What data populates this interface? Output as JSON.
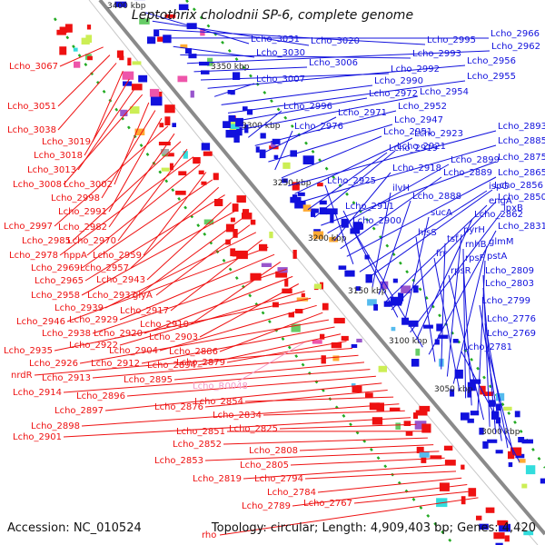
{
  "title": "Leptothrix cholodnii SP-6, complete genome",
  "accession": "Accession: NC_010524",
  "topology": "Topology: circular; Length: 4,909,403 bp; Genes: 4,420",
  "colors": {
    "minus_strand": "#ee1111",
    "plus_strand": "#1111dd",
    "rna_label": "#f39ac8",
    "ruler": "#888888",
    "dots": "#22aa22"
  },
  "coordinate_labels": [
    "3400 kbp",
    "3350 kbp",
    "3300 kbp",
    "3250 kbp",
    "3200 kbp",
    "3150 kbp",
    "3100 kbp",
    "3050 kbp",
    "3000 kbp"
  ],
  "left_labels": [
    "Lcho_3067",
    "Lcho_3051",
    "Lcho_3038",
    "Lcho_3019",
    "Lcho_3018",
    "Lcho_3013",
    "Lcho_3008",
    "Lcho_3002",
    "Lcho_2998",
    "Lcho_2991",
    "Lcho_2997",
    "Lcho_2982",
    "Lcho_2985",
    "Lcho_2970",
    "Lcho_2978",
    "hppA",
    "Lcho_2959",
    "Lcho_2969",
    "Lcho_2957",
    "Lcho_2965",
    "Lcho_2943",
    "Lcho_2958",
    "Lcho_2937",
    "glyA",
    "Lcho_2939",
    "Lcho_2917",
    "Lcho_2946",
    "Lcho_2929",
    "Lcho_2910",
    "Lcho_2938",
    "Lcho_2920",
    "Lcho_2903",
    "Lcho_2922",
    "Lcho_2935",
    "Lcho_2904",
    "Lcho_2886",
    "Lcho_2926",
    "Lcho_2912",
    "Lcho_2894",
    "Lcho_2879",
    "nrdR",
    "Lcho_2913",
    "Lcho_2895",
    "Lcho_2914",
    "Lcho_2896",
    "Lcho_2897",
    "Lcho_2876",
    "Lcho_2854",
    "Lcho_2898",
    "Lcho_2834",
    "Lcho_2901",
    "Lcho_2825",
    "Lcho_2851",
    "Lcho_2852",
    "Lcho_2808",
    "Lcho_2853",
    "Lcho_2805",
    "Lcho_2819",
    "Lcho_2794",
    "Lcho_2784",
    "Lcho_2789",
    "Lcho_2767",
    "rho"
  ],
  "rna_labels": [
    "Lcho_R0048"
  ],
  "right_labels": [
    "Lcho_3031",
    "Lcho_3020",
    "Lcho_2995",
    "Lcho_2966",
    "Lcho_3030",
    "Lcho_2993",
    "Lcho_2962",
    "Lcho_3006",
    "Lcho_2992",
    "Lcho_2956",
    "Lcho_3007",
    "Lcho_2990",
    "Lcho_2955",
    "Lcho_2972",
    "Lcho_2954",
    "Lcho_2996",
    "Lcho_2952",
    "Lcho_2971",
    "Lcho_2947",
    "Lcho_2976",
    "Lcho_2951",
    "Lcho_2893",
    "Lcho_2923",
    "Lcho_2885",
    "Lcho_2919",
    "Lcho_2921",
    "Lcho_2875",
    "Lcho_2899",
    "Lcho_2918",
    "Lcho_2889",
    "Lcho_2865",
    "Lcho_2925",
    "ispG",
    "Lcho_2856",
    "ilvH",
    "Lcho_2888",
    "engA",
    "Lcho_2850",
    "Lcho_2911",
    "sucA",
    "lpxB",
    "Lcho_2862",
    "Lcho_2900",
    "Lcho_2831",
    "hisS",
    "tsf",
    "pyrH",
    "glmM",
    "frr",
    "rnhB",
    "rpsF",
    "pstA",
    "rpsR",
    "Lcho_2809",
    "Lcho_2803",
    "Lcho_2799",
    "Lcho_2776",
    "Lcho_2769",
    "Lcho_2781"
  ]
}
